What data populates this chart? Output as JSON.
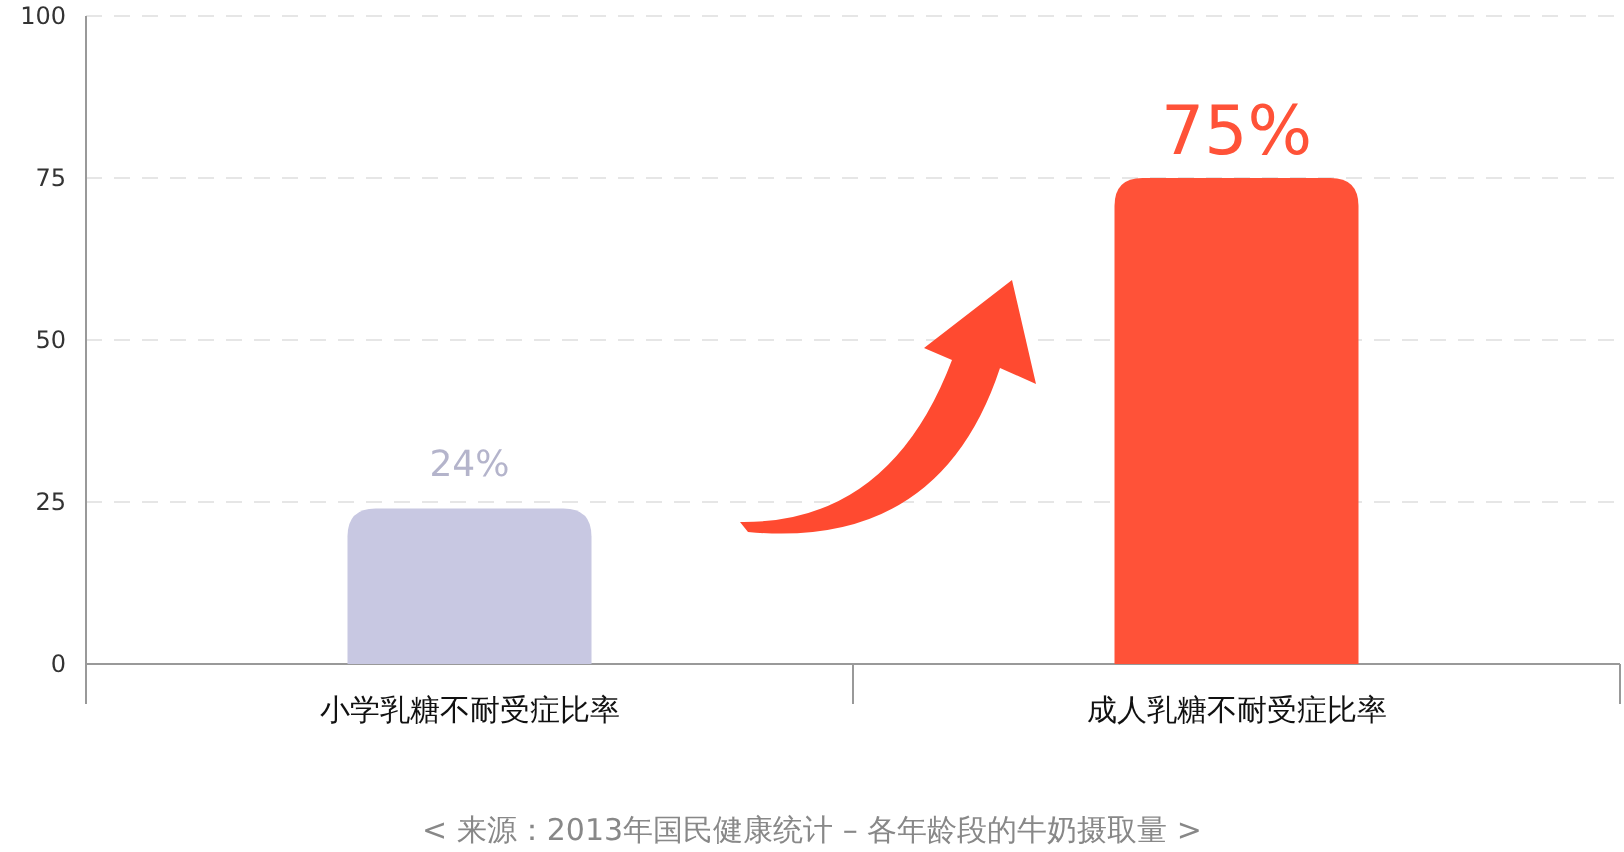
{
  "chart_data": {
    "type": "bar",
    "categories": [
      "小学乳糖不耐受症比率",
      "成人乳糖不耐受症比率"
    ],
    "values": [
      24,
      75
    ],
    "colors": [
      "#c8c8e2",
      "#ff5238"
    ],
    "value_labels": [
      "24%",
      "75%"
    ],
    "ylim": [
      0,
      100
    ],
    "yticks": [
      0,
      25,
      50,
      75,
      100
    ],
    "grid": "y",
    "annotations": [
      "< 来源：2013年国民健康统计 – 各年龄段的牛奶摄取量 >"
    ]
  }
}
